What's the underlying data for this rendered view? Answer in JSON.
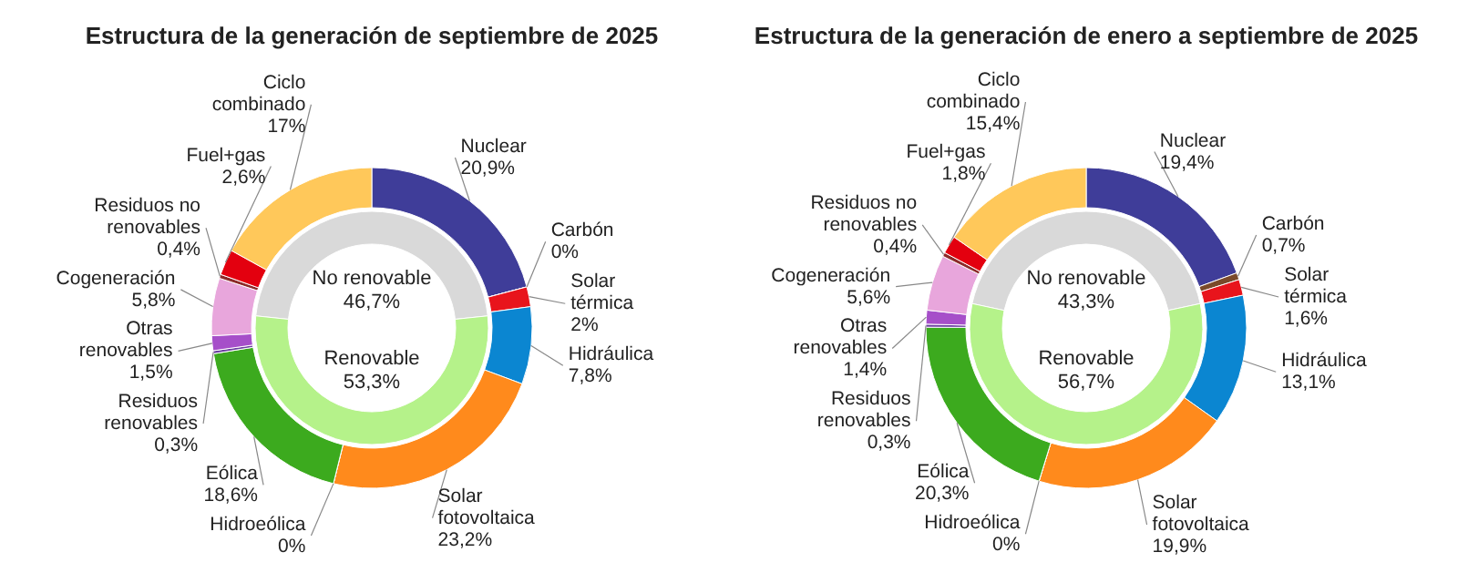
{
  "chart_data": [
    {
      "type": "donut",
      "title": "Estructura de la generación de septiembre de 2025",
      "categories": [
        "Nuclear",
        "Carbón",
        "Solar térmica",
        "Hidráulica",
        "Solar fotovoltaica",
        "Hidroeólica",
        "Eólica",
        "Residuos renovables",
        "Otras renovables",
        "Cogeneración",
        "Residuos no renovables",
        "Fuel+gas",
        "Ciclo combinado"
      ],
      "values": [
        20.9,
        0,
        2,
        7.8,
        23.2,
        0,
        18.6,
        0.3,
        1.5,
        5.8,
        0.4,
        2.6,
        17
      ],
      "value_labels": [
        "20,9%",
        "0%",
        "2%",
        "7,8%",
        "23,2%",
        "0%",
        "18,6%",
        "0,3%",
        "1,5%",
        "5,8%",
        "0,4%",
        "2,6%",
        "17%"
      ],
      "colors": [
        "#3f3d99",
        "#7a4a2a",
        "#e8141c",
        "#0b86d1",
        "#ff8a1c",
        "#5a8fd6",
        "#3caa1e",
        "#6b3fa0",
        "#a64fc9",
        "#e8a6dc",
        "#8c2a2a",
        "#e3000f",
        "#ffc85a"
      ]
    },
    {
      "type": "donut",
      "categories": [
        "No renovable",
        "Renovable"
      ],
      "values": [
        46.7,
        53.3
      ],
      "value_labels": [
        "46,7%",
        "53,3%"
      ],
      "colors": [
        "#d9d9d9",
        "#b5f28a"
      ]
    },
    {
      "type": "donut",
      "title": "Estructura de la generación de enero a septiembre de 2025",
      "categories": [
        "Nuclear",
        "Carbón",
        "Solar térmica",
        "Hidráulica",
        "Solar fotovoltaica",
        "Hidroeólica",
        "Eólica",
        "Residuos renovables",
        "Otras renovables",
        "Cogeneración",
        "Residuos no renovables",
        "Fuel+gas",
        "Ciclo combinado"
      ],
      "values": [
        19.4,
        0.7,
        1.6,
        13.1,
        19.9,
        0,
        20.3,
        0.3,
        1.4,
        5.6,
        0.4,
        1.8,
        15.4
      ],
      "value_labels": [
        "19,4%",
        "0,7%",
        "1,6%",
        "13,1%",
        "19,9%",
        "0%",
        "20,3%",
        "0,3%",
        "1,4%",
        "5,6%",
        "0,4%",
        "1,8%",
        "15,4%"
      ],
      "colors": [
        "#3f3d99",
        "#7a4a2a",
        "#e8141c",
        "#0b86d1",
        "#ff8a1c",
        "#5a8fd6",
        "#3caa1e",
        "#6b3fa0",
        "#a64fc9",
        "#e8a6dc",
        "#8c2a2a",
        "#e3000f",
        "#ffc85a"
      ]
    },
    {
      "type": "donut",
      "categories": [
        "No renovable",
        "Renovable"
      ],
      "values": [
        43.3,
        56.7
      ],
      "value_labels": [
        "43,3%",
        "56,7%"
      ],
      "colors": [
        "#d9d9d9",
        "#b5f28a"
      ]
    }
  ]
}
